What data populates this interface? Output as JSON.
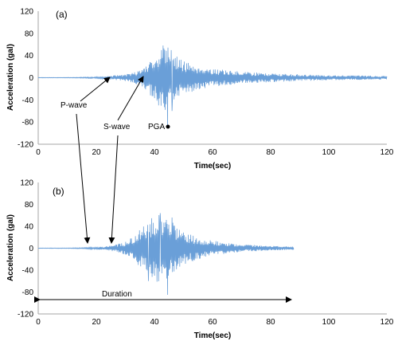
{
  "chart_data": [
    {
      "type": "line",
      "panel_label": "(a)",
      "xlabel": "Time(sec)",
      "ylabel": "Acceleration (gal)",
      "xlim": [
        0,
        120
      ],
      "ylim": [
        -120,
        120
      ],
      "x_ticks": [
        "0",
        "20",
        "40",
        "60",
        "80",
        "100",
        "120"
      ],
      "y_ticks": [
        "120",
        "80",
        "40",
        "0",
        "-40",
        "-80",
        "-120"
      ],
      "grid": false,
      "series": [
        {
          "color": "#6a9fd8",
          "envelope": [
            [
              0,
              0.4
            ],
            [
              10,
              0.5
            ],
            [
              18,
              1.0
            ],
            [
              22,
              2.0
            ],
            [
              26,
              4.0
            ],
            [
              30,
              6.0
            ],
            [
              33,
              10.0
            ],
            [
              35,
              14.0
            ],
            [
              36,
              18.0
            ],
            [
              38,
              28.0
            ],
            [
              40,
              42.0
            ],
            [
              42,
              52.0
            ],
            [
              43,
              58.0
            ],
            [
              44,
              60.0
            ],
            [
              46,
              50.0
            ],
            [
              48,
              38.0
            ],
            [
              50,
              30.0
            ],
            [
              55,
              22.0
            ],
            [
              60,
              16.0
            ],
            [
              70,
              11.0
            ],
            [
              80,
              8.0
            ],
            [
              90,
              6.0
            ],
            [
              100,
              4.5
            ],
            [
              110,
              4.0
            ],
            [
              120,
              3.0
            ]
          ],
          "peak": {
            "x": 44.5,
            "y": -91
          },
          "secondary_peaks": [
            {
              "x": 41.5,
              "y": -50
            },
            {
              "x": 43.0,
              "y": 58
            },
            {
              "x": 46.0,
              "y": -60
            }
          ]
        }
      ],
      "annotations": [
        {
          "text": "P-wave",
          "x": 17,
          "y": -50,
          "arrow_to": {
            "x": 25,
            "y": 0
          }
        },
        {
          "text": "S-wave",
          "x": 28,
          "y": -83,
          "arrow_to": {
            "x": 36,
            "y": 0
          }
        },
        {
          "text": "PGA",
          "x": 38,
          "y": -83,
          "marker": {
            "x": 44.5,
            "y": -92
          }
        }
      ]
    },
    {
      "type": "line",
      "panel_label": "(b)",
      "xlabel": "Time(sec)",
      "ylabel": "Acceleration (gal)",
      "xlim": [
        0,
        120
      ],
      "ylim": [
        -120,
        120
      ],
      "x_ticks": [
        "0",
        "20",
        "40",
        "60",
        "80",
        "100",
        "120"
      ],
      "y_ticks": [
        "120",
        "80",
        "40",
        "0",
        "-40",
        "-80",
        "-120"
      ],
      "grid": false,
      "series": [
        {
          "color": "#6a9fd8",
          "x_end": 88,
          "envelope": [
            [
              0,
              0.4
            ],
            [
              10,
              0.5
            ],
            [
              15,
              1.0
            ],
            [
              20,
              2.0
            ],
            [
              24,
              4.0
            ],
            [
              27,
              7.0
            ],
            [
              30,
              12.0
            ],
            [
              33,
              22.0
            ],
            [
              36,
              40.0
            ],
            [
              38,
              52.0
            ],
            [
              40,
              60.0
            ],
            [
              43,
              65.0
            ],
            [
              45,
              60.0
            ],
            [
              47,
              45.0
            ],
            [
              50,
              30.0
            ],
            [
              55,
              20.0
            ],
            [
              60,
              14.0
            ],
            [
              65,
              10.0
            ],
            [
              70,
              7.0
            ],
            [
              80,
              4.5
            ],
            [
              88,
              3.0
            ]
          ],
          "peak": {
            "x": 44.5,
            "y": -85
          },
          "secondary_peaks": [
            {
              "x": 42.0,
              "y": 64
            },
            {
              "x": 38.0,
              "y": -60
            },
            {
              "x": 46.0,
              "y": 56
            }
          ]
        }
      ],
      "annotations": [
        {
          "text": "Duration",
          "x": 22,
          "y": -87,
          "span": [
            0,
            88
          ],
          "span_y": -95
        }
      ]
    }
  ],
  "connectors": [
    {
      "label": "P-wave",
      "to_panel_b": {
        "x": 17,
        "y": 0
      }
    },
    {
      "label": "S-wave",
      "to_panel_b": {
        "x": 25,
        "y": 0
      }
    }
  ]
}
